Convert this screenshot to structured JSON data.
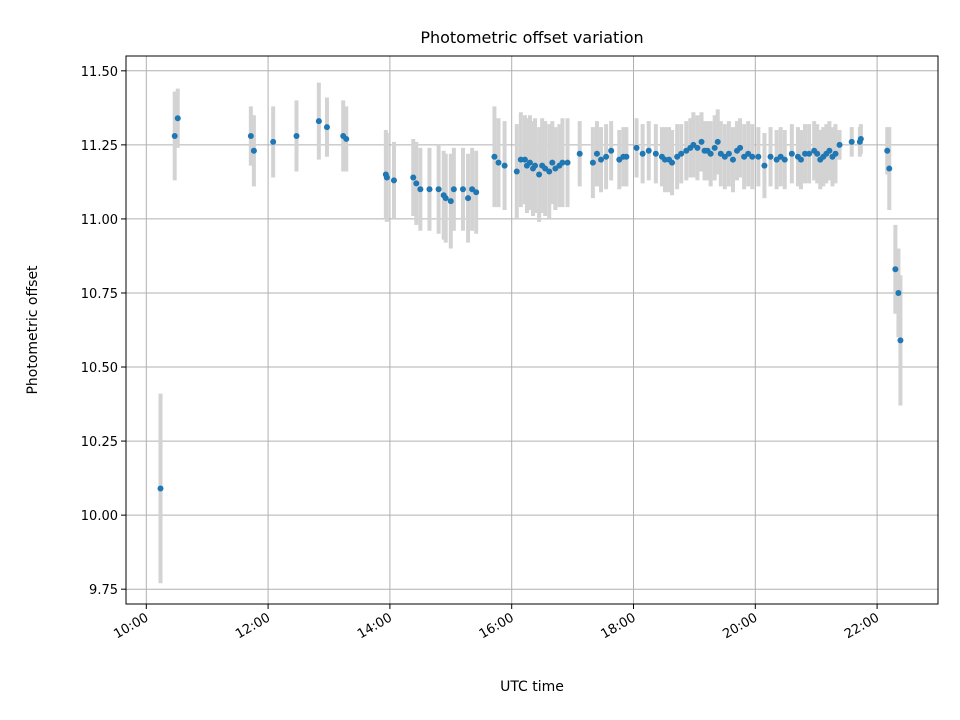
{
  "chart_data": {
    "type": "scatter",
    "title": "Photometric offset variation",
    "xlabel": "UTC time",
    "ylabel": "Photometric offset",
    "x_unit": "UTC time (HH:MM)",
    "xlim": [
      "09:40",
      "23:00"
    ],
    "ylim": [
      9.7,
      11.55
    ],
    "xticks": [
      "10:00",
      "12:00",
      "14:00",
      "16:00",
      "18:00",
      "20:00",
      "22:00"
    ],
    "yticks": [
      9.75,
      10.0,
      10.25,
      10.5,
      10.75,
      11.0,
      11.25,
      11.5
    ],
    "ytick_labels": [
      "9.75",
      "10.00",
      "10.25",
      "10.50",
      "10.75",
      "11.00",
      "11.25",
      "11.50"
    ],
    "grid": true,
    "marker_color": "#1f77b4",
    "errorbar_color": "#d3d3d3",
    "series": [
      {
        "x": [
          "10:14",
          "10:28",
          "10:31",
          "11:43",
          "11:46",
          "12:05",
          "12:28",
          "12:50",
          "12:58",
          "13:14",
          "13:17",
          "13:56",
          "13:57",
          "14:04",
          "14:23",
          "14:26",
          "14:30",
          "14:39",
          "14:48",
          "14:53",
          "14:55",
          "15:00",
          "15:03",
          "15:12",
          "15:17",
          "15:21",
          "15:25",
          "15:43",
          "15:47",
          "15:53",
          "16:05",
          "16:09",
          "16:13",
          "16:15",
          "16:18",
          "16:21",
          "16:23",
          "16:27",
          "16:30",
          "16:33",
          "16:37",
          "16:40",
          "16:43",
          "16:47",
          "16:50",
          "16:55",
          "17:07",
          "17:20",
          "17:24",
          "17:28",
          "17:33",
          "17:38",
          "17:46",
          "17:50",
          "17:53",
          "18:03",
          "18:09",
          "18:15",
          "18:22",
          "18:28",
          "18:31",
          "18:35",
          "18:38",
          "18:43",
          "18:47",
          "18:52",
          "18:56",
          "18:59",
          "19:03",
          "19:07",
          "19:10",
          "19:13",
          "19:16",
          "19:20",
          "19:23",
          "19:26",
          "19:30",
          "19:34",
          "19:38",
          "19:42",
          "19:45",
          "19:49",
          "19:53",
          "19:57",
          "20:03",
          "20:09",
          "20:15",
          "20:21",
          "20:25",
          "20:29",
          "20:36",
          "20:42",
          "20:45",
          "20:49",
          "20:53",
          "20:58",
          "21:01",
          "21:04",
          "21:07",
          "21:10",
          "21:13",
          "21:16",
          "21:19",
          "21:23",
          "21:35",
          "21:43",
          "21:44",
          "22:10",
          "22:12",
          "22:18",
          "22:21",
          "22:23"
        ],
        "y": [
          10.09,
          11.28,
          11.34,
          11.28,
          11.23,
          11.26,
          11.28,
          11.33,
          11.31,
          11.28,
          11.27,
          11.15,
          11.14,
          11.13,
          11.14,
          11.12,
          11.1,
          11.1,
          11.1,
          11.08,
          11.07,
          11.06,
          11.1,
          11.1,
          11.07,
          11.1,
          11.09,
          11.21,
          11.19,
          11.18,
          11.16,
          11.2,
          11.2,
          11.18,
          11.19,
          11.17,
          11.18,
          11.15,
          11.18,
          11.17,
          11.16,
          11.19,
          11.17,
          11.18,
          11.19,
          11.19,
          11.22,
          11.19,
          11.22,
          11.2,
          11.21,
          11.23,
          11.2,
          11.21,
          11.21,
          11.24,
          11.22,
          11.23,
          11.22,
          11.21,
          11.2,
          11.2,
          11.19,
          11.21,
          11.22,
          11.23,
          11.24,
          11.25,
          11.24,
          11.26,
          11.23,
          11.23,
          11.22,
          11.24,
          11.26,
          11.22,
          11.21,
          11.22,
          11.2,
          11.23,
          11.24,
          11.21,
          11.22,
          11.21,
          11.21,
          11.18,
          11.21,
          11.2,
          11.21,
          11.2,
          11.22,
          11.21,
          11.2,
          11.22,
          11.22,
          11.23,
          11.22,
          11.2,
          11.21,
          11.22,
          11.23,
          11.21,
          11.22,
          11.25,
          11.26,
          11.26,
          11.27,
          11.23,
          11.17,
          10.83,
          10.75,
          10.59
        ],
        "yerr": [
          0.32,
          0.15,
          0.1,
          0.1,
          0.12,
          0.12,
          0.12,
          0.13,
          0.1,
          0.12,
          0.11,
          0.15,
          0.15,
          0.13,
          0.13,
          0.14,
          0.14,
          0.14,
          0.15,
          0.15,
          0.15,
          0.16,
          0.14,
          0.14,
          0.15,
          0.14,
          0.14,
          0.17,
          0.15,
          0.15,
          0.16,
          0.16,
          0.15,
          0.16,
          0.16,
          0.16,
          0.16,
          0.16,
          0.16,
          0.16,
          0.16,
          0.14,
          0.14,
          0.14,
          0.15,
          0.15,
          0.11,
          0.12,
          0.11,
          0.11,
          0.11,
          0.1,
          0.1,
          0.1,
          0.1,
          0.1,
          0.1,
          0.1,
          0.1,
          0.1,
          0.11,
          0.11,
          0.11,
          0.11,
          0.1,
          0.1,
          0.1,
          0.11,
          0.11,
          0.1,
          0.1,
          0.1,
          0.11,
          0.11,
          0.11,
          0.11,
          0.11,
          0.11,
          0.11,
          0.1,
          0.1,
          0.11,
          0.11,
          0.11,
          0.1,
          0.11,
          0.1,
          0.1,
          0.1,
          0.1,
          0.1,
          0.1,
          0.1,
          0.1,
          0.1,
          0.1,
          0.1,
          0.1,
          0.1,
          0.1,
          0.1,
          0.1,
          0.1,
          0.05,
          0.05,
          0.05,
          0.05,
          0.08,
          0.14,
          0.15,
          0.15,
          0.22
        ]
      }
    ]
  }
}
